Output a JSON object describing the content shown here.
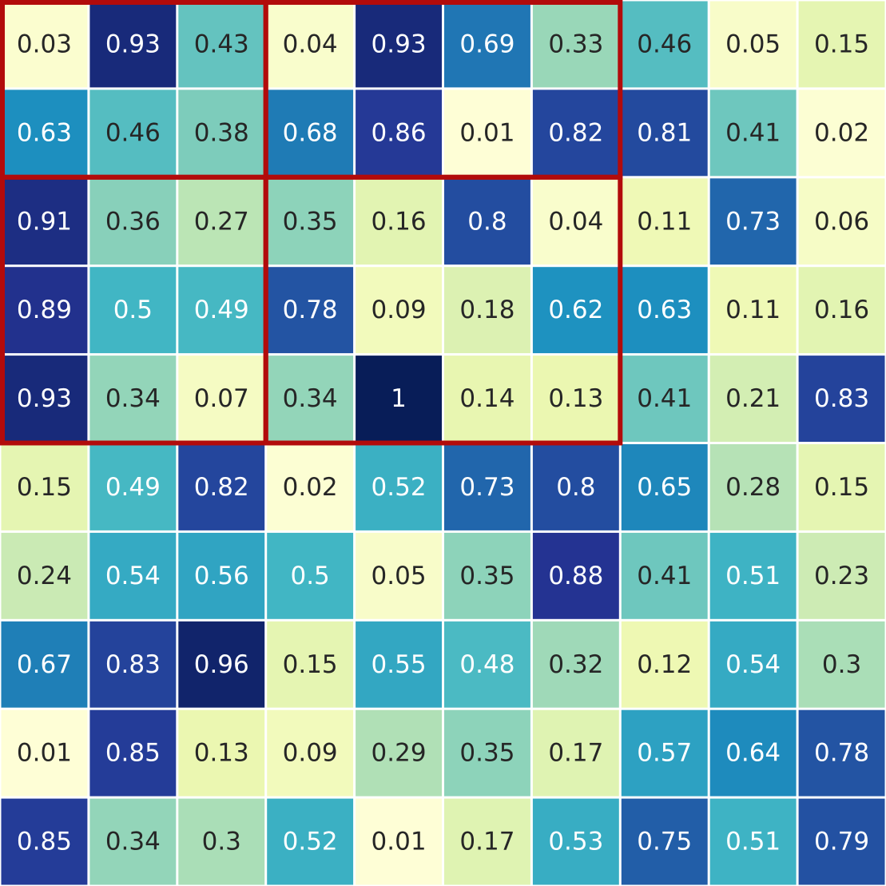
{
  "chart_data": {
    "type": "heatmap",
    "title": "",
    "xlabel": "",
    "ylabel": "",
    "rows": 10,
    "cols": 10,
    "color_scale": "yellow-green-blue",
    "value_range": [
      0,
      1
    ],
    "grid_line_color": "#ffffff",
    "highlight_color": "#b20b0b",
    "highlights": [
      {
        "row_start": 0,
        "row_end": 1,
        "col_start": 0,
        "col_end": 2
      },
      {
        "row_start": 0,
        "row_end": 1,
        "col_start": 3,
        "col_end": 6
      },
      {
        "row_start": 2,
        "row_end": 4,
        "col_start": 0,
        "col_end": 2
      },
      {
        "row_start": 2,
        "row_end": 4,
        "col_start": 3,
        "col_end": 6
      }
    ],
    "values": [
      [
        0.03,
        0.93,
        0.43,
        0.04,
        0.93,
        0.69,
        0.33,
        0.46,
        0.05,
        0.15
      ],
      [
        0.63,
        0.46,
        0.38,
        0.68,
        0.86,
        0.01,
        0.82,
        0.81,
        0.41,
        0.02
      ],
      [
        0.91,
        0.36,
        0.27,
        0.35,
        0.16,
        0.8,
        0.04,
        0.11,
        0.73,
        0.06
      ],
      [
        0.89,
        0.5,
        0.49,
        0.78,
        0.09,
        0.18,
        0.62,
        0.63,
        0.11,
        0.16
      ],
      [
        0.93,
        0.34,
        0.07,
        0.34,
        1,
        0.14,
        0.13,
        0.41,
        0.21,
        0.83
      ],
      [
        0.15,
        0.49,
        0.82,
        0.02,
        0.52,
        0.73,
        0.8,
        0.65,
        0.28,
        0.15
      ],
      [
        0.24,
        0.54,
        0.56,
        0.5,
        0.05,
        0.35,
        0.88,
        0.41,
        0.51,
        0.23
      ],
      [
        0.67,
        0.83,
        0.96,
        0.15,
        0.55,
        0.48,
        0.32,
        0.12,
        0.54,
        0.3
      ],
      [
        0.01,
        0.85,
        0.13,
        0.09,
        0.29,
        0.35,
        0.17,
        0.57,
        0.64,
        0.78
      ],
      [
        0.85,
        0.34,
        0.3,
        0.52,
        0.01,
        0.17,
        0.53,
        0.75,
        0.51,
        0.79
      ]
    ]
  }
}
